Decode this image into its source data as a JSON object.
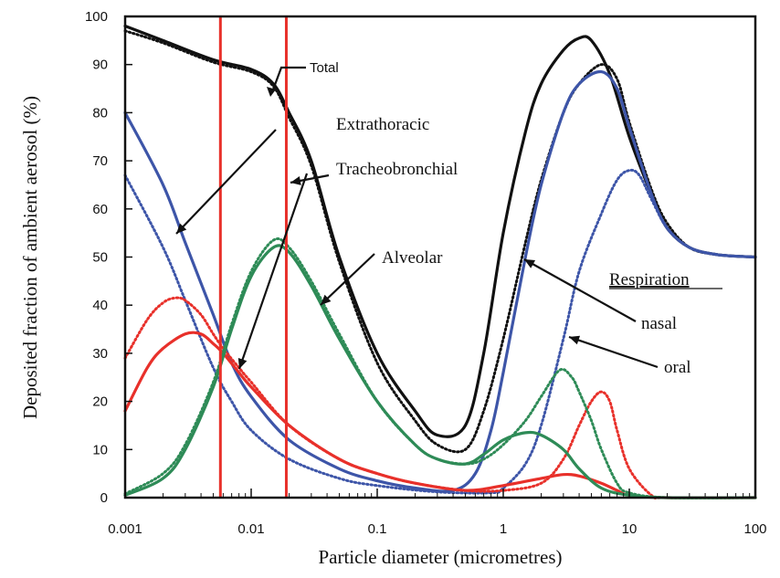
{
  "chart_data": {
    "type": "line",
    "xlabel": "Particle diameter (micrometres)",
    "ylabel": "Deposited fraction of ambient aerosol (%)",
    "x_scale": "log",
    "xlim": [
      0.001,
      100
    ],
    "ylim": [
      0,
      100
    ],
    "x_ticks": [
      0.001,
      0.01,
      0.1,
      1,
      10,
      100
    ],
    "x_tick_labels": [
      "0.001",
      "0.01",
      "0.1",
      "1",
      "10",
      "100"
    ],
    "y_ticks": [
      0,
      10,
      20,
      30,
      40,
      50,
      60,
      70,
      80,
      90,
      100
    ],
    "y_tick_labels": [
      "0",
      "10",
      "20",
      "30",
      "40",
      "50",
      "60",
      "70",
      "80",
      "90",
      "100"
    ],
    "grid": false,
    "legend": "none",
    "colors": {
      "black": "#111111",
      "blue": "#3d55a8",
      "green": "#2e8b57",
      "red": "#e8302a"
    },
    "vertical_lines": {
      "color": "#e8302a",
      "x": [
        0.0057,
        0.019
      ]
    },
    "annotations": {
      "total": "Total",
      "extrathoracic": "Extrathoracic",
      "tracheobronchial": "Tracheobronchial",
      "alveolar": "Alveolar",
      "respiration": "Respiration",
      "nasal": "nasal",
      "oral": "oral"
    },
    "series": [
      {
        "region": "total",
        "breathing": "nasal",
        "color": "#111111",
        "dash": "solid",
        "points": [
          [
            0.001,
            98
          ],
          [
            0.002,
            95
          ],
          [
            0.005,
            91
          ],
          [
            0.01,
            89
          ],
          [
            0.015,
            86
          ],
          [
            0.02,
            80
          ],
          [
            0.03,
            70
          ],
          [
            0.05,
            50
          ],
          [
            0.1,
            30
          ],
          [
            0.2,
            18
          ],
          [
            0.3,
            13
          ],
          [
            0.5,
            15
          ],
          [
            0.7,
            30
          ],
          [
            1,
            55
          ],
          [
            1.5,
            76
          ],
          [
            2,
            86
          ],
          [
            3,
            93
          ],
          [
            4,
            95.5
          ],
          [
            5,
            95
          ],
          [
            7,
            88
          ],
          [
            10,
            75
          ],
          [
            15,
            63
          ],
          [
            20,
            56
          ],
          [
            30,
            52
          ],
          [
            50,
            50.5
          ],
          [
            100,
            50
          ]
        ]
      },
      {
        "region": "total",
        "breathing": "oral",
        "color": "#111111",
        "dash": "dot",
        "points": [
          [
            0.001,
            97
          ],
          [
            0.002,
            94.5
          ],
          [
            0.005,
            90.5
          ],
          [
            0.01,
            88.5
          ],
          [
            0.015,
            85.5
          ],
          [
            0.02,
            79
          ],
          [
            0.03,
            69
          ],
          [
            0.05,
            49
          ],
          [
            0.1,
            28
          ],
          [
            0.2,
            16
          ],
          [
            0.3,
            11
          ],
          [
            0.5,
            10
          ],
          [
            0.7,
            18
          ],
          [
            1,
            33
          ],
          [
            1.5,
            53
          ],
          [
            2,
            66
          ],
          [
            3,
            80
          ],
          [
            4,
            86
          ],
          [
            6,
            90
          ],
          [
            8,
            87
          ],
          [
            10,
            78
          ],
          [
            15,
            64
          ],
          [
            20,
            57
          ],
          [
            30,
            52
          ],
          [
            50,
            50.5
          ],
          [
            100,
            50
          ]
        ]
      },
      {
        "region": "extrathoracic",
        "breathing": "nasal",
        "color": "#3d55a8",
        "dash": "solid",
        "points": [
          [
            0.001,
            80
          ],
          [
            0.002,
            65
          ],
          [
            0.003,
            53
          ],
          [
            0.005,
            38
          ],
          [
            0.007,
            28
          ],
          [
            0.01,
            21
          ],
          [
            0.02,
            12
          ],
          [
            0.05,
            6
          ],
          [
            0.1,
            3.5
          ],
          [
            0.2,
            2
          ],
          [
            0.4,
            1.5
          ],
          [
            0.6,
            5
          ],
          [
            0.8,
            14
          ],
          [
            1,
            26
          ],
          [
            1.5,
            50
          ],
          [
            2,
            65
          ],
          [
            3,
            80
          ],
          [
            4,
            86
          ],
          [
            6,
            88.5
          ],
          [
            8,
            85
          ],
          [
            10,
            77
          ],
          [
            15,
            63
          ],
          [
            20,
            56
          ],
          [
            30,
            52
          ],
          [
            50,
            50.5
          ],
          [
            100,
            50
          ]
        ]
      },
      {
        "region": "extrathoracic",
        "breathing": "oral",
        "color": "#3d55a8",
        "dash": "dot",
        "points": [
          [
            0.001,
            67
          ],
          [
            0.002,
            52
          ],
          [
            0.003,
            41
          ],
          [
            0.005,
            27
          ],
          [
            0.007,
            20
          ],
          [
            0.01,
            14
          ],
          [
            0.02,
            8
          ],
          [
            0.05,
            4
          ],
          [
            0.1,
            2.5
          ],
          [
            0.3,
            1.2
          ],
          [
            0.8,
            1
          ],
          [
            1,
            2
          ],
          [
            1.5,
            7
          ],
          [
            2,
            15
          ],
          [
            3,
            33
          ],
          [
            4,
            47
          ],
          [
            6,
            59
          ],
          [
            8,
            66
          ],
          [
            10,
            68
          ],
          [
            12,
            67
          ],
          [
            15,
            62
          ],
          [
            20,
            56
          ],
          [
            30,
            52
          ],
          [
            50,
            50.5
          ],
          [
            100,
            50
          ]
        ]
      },
      {
        "region": "tracheobronchial",
        "breathing": "nasal",
        "color": "#e8302a",
        "dash": "solid",
        "points": [
          [
            0.001,
            18
          ],
          [
            0.0015,
            27
          ],
          [
            0.002,
            31
          ],
          [
            0.003,
            34
          ],
          [
            0.004,
            34
          ],
          [
            0.005,
            32
          ],
          [
            0.006,
            30
          ],
          [
            0.008,
            26
          ],
          [
            0.01,
            23
          ],
          [
            0.02,
            15
          ],
          [
            0.05,
            8
          ],
          [
            0.1,
            5
          ],
          [
            0.2,
            3
          ],
          [
            0.5,
            1.5
          ],
          [
            1,
            2.5
          ],
          [
            2,
            4
          ],
          [
            3,
            4.8
          ],
          [
            4,
            4.5
          ],
          [
            6,
            3
          ],
          [
            8,
            1.5
          ],
          [
            10,
            0.5
          ],
          [
            20,
            0
          ],
          [
            100,
            0
          ]
        ]
      },
      {
        "region": "tracheobronchial",
        "breathing": "oral",
        "color": "#e8302a",
        "dash": "dot",
        "points": [
          [
            0.001,
            29
          ],
          [
            0.0015,
            37
          ],
          [
            0.002,
            40.5
          ],
          [
            0.0025,
            41.5
          ],
          [
            0.003,
            41
          ],
          [
            0.004,
            38
          ],
          [
            0.005,
            34
          ],
          [
            0.006,
            31
          ],
          [
            0.008,
            27
          ],
          [
            0.01,
            24
          ],
          [
            0.02,
            15
          ],
          [
            0.05,
            8
          ],
          [
            0.1,
            5
          ],
          [
            0.2,
            3
          ],
          [
            0.5,
            1.5
          ],
          [
            1,
            1.5
          ],
          [
            2,
            3
          ],
          [
            3,
            8
          ],
          [
            4,
            15
          ],
          [
            5,
            20
          ],
          [
            6,
            22
          ],
          [
            7,
            20
          ],
          [
            8,
            14
          ],
          [
            10,
            6
          ],
          [
            15,
            0.5
          ],
          [
            20,
            0
          ],
          [
            100,
            0
          ]
        ]
      },
      {
        "region": "alveolar",
        "breathing": "nasal",
        "color": "#2e8b57",
        "dash": "solid",
        "points": [
          [
            0.001,
            0.5
          ],
          [
            0.002,
            4
          ],
          [
            0.003,
            10
          ],
          [
            0.005,
            23
          ],
          [
            0.007,
            35
          ],
          [
            0.01,
            46
          ],
          [
            0.015,
            52
          ],
          [
            0.02,
            51
          ],
          [
            0.03,
            44
          ],
          [
            0.05,
            33
          ],
          [
            0.1,
            20
          ],
          [
            0.2,
            11
          ],
          [
            0.3,
            8
          ],
          [
            0.5,
            7
          ],
          [
            0.7,
            9
          ],
          [
            1,
            12
          ],
          [
            1.5,
            13.5
          ],
          [
            2,
            13
          ],
          [
            3,
            10
          ],
          [
            4,
            6
          ],
          [
            6,
            2
          ],
          [
            10,
            0.5
          ],
          [
            20,
            0
          ],
          [
            100,
            0
          ]
        ]
      },
      {
        "region": "alveolar",
        "breathing": "oral",
        "color": "#2e8b57",
        "dash": "dot",
        "points": [
          [
            0.001,
            0.8
          ],
          [
            0.002,
            5
          ],
          [
            0.003,
            11
          ],
          [
            0.005,
            24
          ],
          [
            0.007,
            36
          ],
          [
            0.01,
            47
          ],
          [
            0.015,
            53.5
          ],
          [
            0.02,
            52
          ],
          [
            0.03,
            45
          ],
          [
            0.05,
            34
          ],
          [
            0.1,
            20
          ],
          [
            0.2,
            11
          ],
          [
            0.3,
            8
          ],
          [
            0.5,
            7
          ],
          [
            0.7,
            8
          ],
          [
            1,
            11
          ],
          [
            1.5,
            16
          ],
          [
            2,
            21
          ],
          [
            2.8,
            26.5
          ],
          [
            3.5,
            25
          ],
          [
            4,
            22
          ],
          [
            5,
            16
          ],
          [
            6,
            10
          ],
          [
            8,
            3
          ],
          [
            10,
            1
          ],
          [
            20,
            0
          ],
          [
            100,
            0
          ]
        ]
      }
    ]
  }
}
